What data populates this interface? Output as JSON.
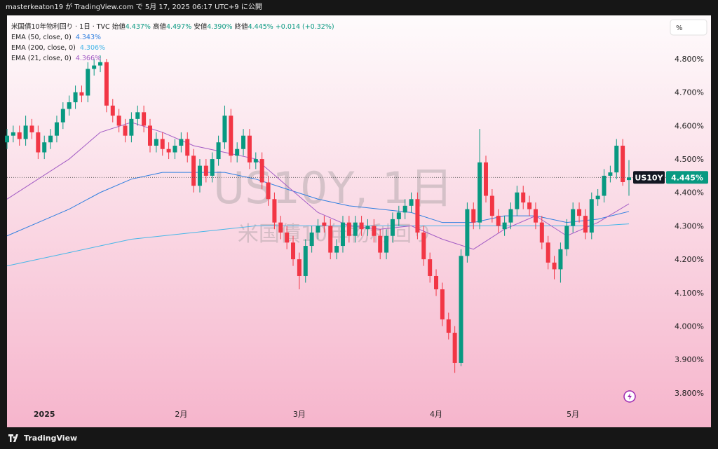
{
  "header": {
    "publish": "masterkeaton19 が TradingView.com で 5月 17, 2025 06:17 UTC+9 に公開",
    "brand": "TradingView"
  },
  "legend": {
    "symbol": "米国債10年物利回り · 1日 · TVC",
    "open_label": "始値",
    "open": "4.437%",
    "high_label": "高値",
    "high": "4.497%",
    "low_label": "安値",
    "low": "4.390%",
    "close_label": "終値",
    "close": "4.445%",
    "change": "+0.014 (+0.32%)"
  },
  "watermark": {
    "ticker": "US10Y, 1日",
    "name": "米国債10年物利回り"
  },
  "price_tag": {
    "ticker": "US10Y",
    "label": "4.445%"
  },
  "scale_button": "%",
  "chart_data": {
    "type": "candlestick",
    "up_color": "#089981",
    "down_color": "#f23645",
    "categories": [
      null,
      null,
      null,
      null,
      null,
      null,
      "2025",
      null,
      null,
      null,
      null,
      null,
      null,
      null,
      null,
      null,
      null,
      null,
      null,
      null,
      null,
      null,
      null,
      null,
      null,
      null,
      null,
      null,
      "2月",
      null,
      null,
      null,
      null,
      null,
      null,
      null,
      null,
      null,
      null,
      null,
      null,
      null,
      null,
      null,
      null,
      null,
      null,
      "3月",
      null,
      null,
      null,
      null,
      null,
      null,
      null,
      null,
      null,
      null,
      null,
      null,
      null,
      null,
      null,
      null,
      null,
      null,
      null,
      null,
      null,
      "4月",
      null,
      null,
      null,
      null,
      null,
      null,
      null,
      null,
      null,
      null,
      null,
      null,
      null,
      null,
      null,
      null,
      null,
      null,
      null,
      null,
      null,
      "5月",
      null,
      null,
      null,
      null,
      null,
      null,
      null,
      null,
      null
    ],
    "open": [
      4.55,
      4.57,
      4.58,
      4.56,
      4.6,
      4.58,
      4.52,
      4.55,
      4.57,
      4.61,
      4.65,
      4.67,
      4.7,
      4.69,
      4.77,
      4.78,
      4.79,
      4.66,
      4.63,
      4.6,
      4.57,
      4.62,
      4.64,
      4.6,
      4.54,
      4.56,
      4.53,
      4.52,
      4.54,
      4.56,
      4.51,
      4.42,
      4.48,
      4.45,
      4.5,
      4.55,
      4.63,
      4.51,
      4.53,
      4.57,
      4.49,
      4.5,
      4.43,
      4.38,
      4.31,
      4.28,
      4.25,
      4.2,
      4.15,
      4.24,
      4.28,
      4.31,
      4.3,
      4.22,
      4.24,
      4.31,
      4.27,
      4.31,
      4.29,
      4.3,
      4.27,
      4.22,
      4.27,
      4.32,
      4.34,
      4.36,
      4.38,
      4.28,
      4.2,
      4.15,
      4.11,
      4.02,
      3.98,
      3.89,
      4.21,
      4.35,
      4.31,
      4.49,
      4.39,
      4.33,
      4.29,
      4.31,
      4.35,
      4.4,
      4.37,
      4.35,
      4.31,
      4.25,
      4.19,
      4.17,
      4.23,
      4.3,
      4.35,
      4.33,
      4.28,
      4.38,
      4.39,
      4.45,
      4.46,
      4.54,
      4.437
    ],
    "high": [
      4.59,
      4.6,
      4.6,
      4.63,
      4.62,
      4.6,
      4.57,
      4.59,
      4.63,
      4.67,
      4.69,
      4.72,
      4.72,
      4.79,
      4.8,
      4.81,
      4.8,
      4.68,
      4.65,
      4.62,
      4.64,
      4.66,
      4.66,
      4.62,
      4.58,
      4.58,
      4.55,
      4.56,
      4.58,
      4.58,
      4.53,
      4.5,
      4.5,
      4.52,
      4.57,
      4.66,
      4.65,
      4.55,
      4.59,
      4.59,
      4.52,
      4.52,
      4.45,
      4.4,
      4.33,
      4.3,
      4.27,
      4.22,
      4.26,
      4.3,
      4.32,
      4.33,
      4.32,
      4.26,
      4.33,
      4.33,
      4.33,
      4.33,
      4.32,
      4.32,
      4.29,
      4.29,
      4.34,
      4.36,
      4.38,
      4.4,
      4.4,
      4.3,
      4.22,
      4.17,
      4.13,
      4.04,
      4.0,
      4.23,
      4.37,
      4.37,
      4.59,
      4.51,
      4.41,
      4.35,
      4.33,
      4.37,
      4.42,
      4.42,
      4.39,
      4.37,
      4.33,
      4.27,
      4.21,
      4.25,
      4.32,
      4.37,
      4.37,
      4.35,
      4.4,
      4.41,
      4.47,
      4.48,
      4.56,
      4.56,
      4.497
    ],
    "low": [
      4.53,
      4.55,
      4.54,
      4.54,
      4.56,
      4.5,
      4.5,
      4.53,
      4.55,
      4.59,
      4.63,
      4.65,
      4.67,
      4.67,
      4.75,
      4.76,
      4.64,
      4.61,
      4.58,
      4.55,
      4.55,
      4.6,
      4.58,
      4.52,
      4.52,
      4.51,
      4.5,
      4.5,
      4.52,
      4.49,
      4.4,
      4.4,
      4.43,
      4.43,
      4.48,
      4.53,
      4.49,
      4.49,
      4.51,
      4.47,
      4.47,
      4.41,
      4.36,
      4.29,
      4.26,
      4.23,
      4.18,
      4.11,
      4.13,
      4.22,
      4.26,
      4.28,
      4.2,
      4.2,
      4.22,
      4.25,
      4.25,
      4.27,
      4.27,
      4.25,
      4.2,
      4.2,
      4.25,
      4.3,
      4.32,
      4.34,
      4.26,
      4.18,
      4.13,
      4.09,
      4.0,
      3.96,
      3.86,
      3.88,
      4.19,
      4.29,
      4.29,
      4.37,
      4.31,
      4.28,
      4.27,
      4.29,
      4.33,
      4.35,
      4.33,
      4.29,
      4.23,
      4.17,
      4.14,
      4.13,
      4.21,
      4.28,
      4.31,
      4.26,
      4.26,
      4.36,
      4.37,
      4.43,
      4.44,
      4.42,
      4.39
    ],
    "close": [
      4.57,
      4.58,
      4.56,
      4.6,
      4.58,
      4.52,
      4.55,
      4.57,
      4.61,
      4.65,
      4.67,
      4.7,
      4.69,
      4.77,
      4.78,
      4.79,
      4.66,
      4.63,
      4.6,
      4.57,
      4.62,
      4.64,
      4.6,
      4.54,
      4.56,
      4.53,
      4.52,
      4.54,
      4.56,
      4.51,
      4.42,
      4.48,
      4.45,
      4.5,
      4.55,
      4.63,
      4.51,
      4.53,
      4.57,
      4.49,
      4.5,
      4.43,
      4.38,
      4.31,
      4.28,
      4.25,
      4.2,
      4.15,
      4.24,
      4.28,
      4.3,
      4.3,
      4.22,
      4.24,
      4.31,
      4.27,
      4.31,
      4.29,
      4.3,
      4.27,
      4.22,
      4.27,
      4.32,
      4.34,
      4.36,
      4.38,
      4.28,
      4.2,
      4.15,
      4.11,
      4.02,
      3.98,
      3.89,
      4.21,
      4.35,
      4.31,
      4.49,
      4.39,
      4.33,
      4.3,
      4.31,
      4.35,
      4.4,
      4.37,
      4.35,
      4.31,
      4.25,
      4.19,
      4.17,
      4.23,
      4.3,
      4.35,
      4.33,
      4.28,
      4.38,
      4.39,
      4.45,
      4.46,
      4.54,
      4.431,
      4.445
    ],
    "series": [
      {
        "name": "EMA (50, close, 0)",
        "color": "#2f7fe0",
        "x": [
          0,
          5,
          10,
          15,
          20,
          25,
          30,
          35,
          40,
          45,
          50,
          55,
          60,
          65,
          70,
          75,
          80,
          85,
          90,
          95,
          100
        ],
        "values": [
          4.27,
          4.31,
          4.35,
          4.4,
          4.44,
          4.46,
          4.46,
          4.46,
          4.44,
          4.41,
          4.38,
          4.36,
          4.35,
          4.34,
          4.31,
          4.31,
          4.33,
          4.33,
          4.31,
          4.32,
          4.343
        ],
        "value_labels": [
          null,
          null,
          null,
          null,
          null,
          null,
          null,
          null,
          null,
          null,
          null,
          null,
          null,
          null,
          null,
          null,
          null,
          null,
          null,
          null,
          "4.343%"
        ]
      },
      {
        "name": "EMA (200, close, 0)",
        "color": "#47b7e8",
        "x": [
          0,
          5,
          10,
          15,
          20,
          25,
          30,
          35,
          40,
          45,
          50,
          55,
          60,
          65,
          70,
          75,
          80,
          85,
          90,
          95,
          100
        ],
        "values": [
          4.18,
          4.2,
          4.22,
          4.24,
          4.26,
          4.27,
          4.28,
          4.29,
          4.3,
          4.3,
          4.3,
          4.3,
          4.3,
          4.3,
          4.3,
          4.3,
          4.3,
          4.3,
          4.3,
          4.3,
          4.306
        ],
        "value_labels": [
          null,
          null,
          null,
          null,
          null,
          null,
          null,
          null,
          null,
          null,
          null,
          null,
          null,
          null,
          null,
          null,
          null,
          null,
          null,
          null,
          "4.306%"
        ]
      },
      {
        "name": "EMA (21, close, 0)",
        "color": "#a25bc4",
        "x": [
          0,
          5,
          10,
          15,
          20,
          25,
          30,
          35,
          40,
          45,
          50,
          55,
          60,
          65,
          70,
          75,
          80,
          85,
          90,
          95,
          100
        ],
        "values": [
          4.38,
          4.44,
          4.5,
          4.58,
          4.61,
          4.58,
          4.54,
          4.52,
          4.5,
          4.42,
          4.34,
          4.3,
          4.29,
          4.3,
          4.26,
          4.23,
          4.29,
          4.33,
          4.27,
          4.31,
          4.366
        ],
        "value_labels": [
          null,
          null,
          null,
          null,
          null,
          null,
          null,
          null,
          null,
          null,
          null,
          null,
          null,
          null,
          null,
          null,
          null,
          null,
          null,
          null,
          "4.366%"
        ]
      }
    ],
    "ylim": [
      3.697,
      4.93
    ],
    "yticks": [
      {
        "value": 3.8,
        "label": "3.800%"
      },
      {
        "value": 3.9,
        "label": "3.900%"
      },
      {
        "value": 4.0,
        "label": "4.000%"
      },
      {
        "value": 4.1,
        "label": "4.100%"
      },
      {
        "value": 4.2,
        "label": "4.200%"
      },
      {
        "value": 4.3,
        "label": "4.300%"
      },
      {
        "value": 4.4,
        "label": "4.400%"
      },
      {
        "value": 4.5,
        "label": "4.500%"
      },
      {
        "value": 4.6,
        "label": "4.600%"
      },
      {
        "value": 4.7,
        "label": "4.700%"
      },
      {
        "value": 4.8,
        "label": "4.800%"
      }
    ],
    "grid": false
  }
}
